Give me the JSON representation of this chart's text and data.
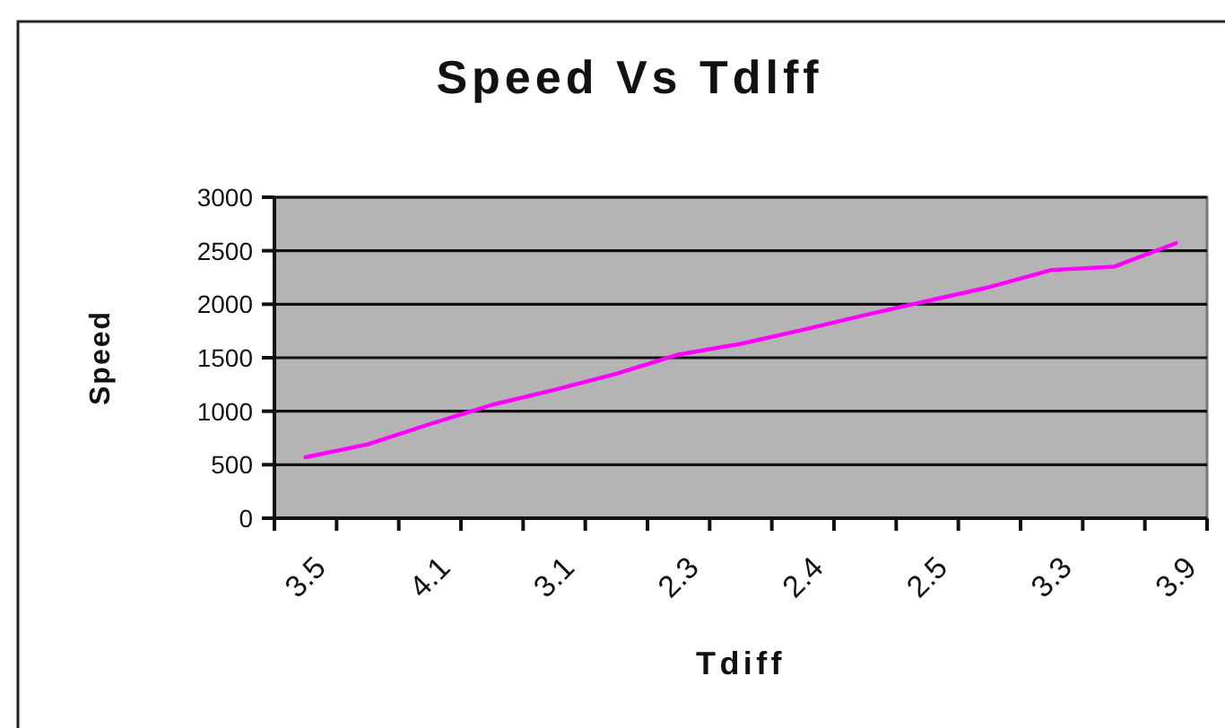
{
  "chart_data": {
    "type": "line",
    "title": "Speed Vs Tdlff",
    "xlabel": "Tdiff",
    "ylabel": "Speed",
    "categories": [
      "3.5",
      null,
      "4.1",
      null,
      "3.1",
      null,
      "2.3",
      null,
      "2.4",
      null,
      "2.5",
      null,
      "3.3",
      null,
      "3.9"
    ],
    "series": [
      {
        "color": "#ff00ff",
        "values": [
          570,
          690,
          880,
          1060,
          1200,
          1350,
          1530,
          1630,
          1760,
          1900,
          2030,
          2160,
          2320,
          2350,
          2570
        ]
      }
    ],
    "ylim": [
      0,
      3000
    ],
    "yticks": [
      0,
      500,
      1000,
      1500,
      2000,
      2500,
      3000
    ],
    "grid": "y"
  }
}
